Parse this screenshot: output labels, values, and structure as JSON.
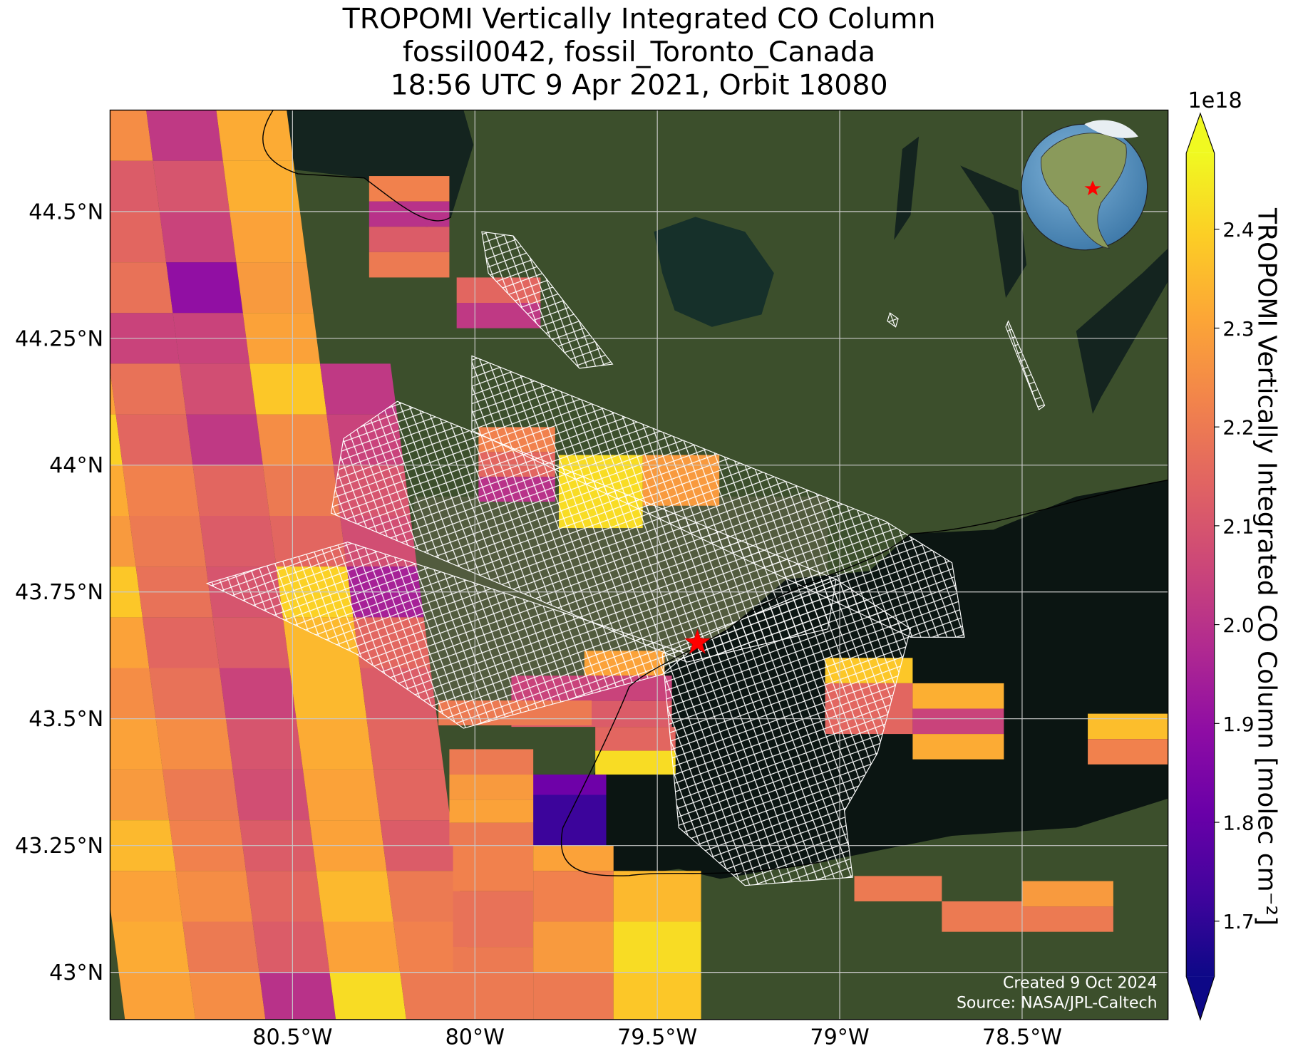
{
  "chart_data": {
    "type": "map",
    "title": [
      "TROPOMI Vertically Integrated CO Column",
      "fossil0042, fossil_Toronto_Canada",
      "18:56 UTC 9 Apr 2021, Orbit 18080"
    ],
    "xlim": [
      -81.0,
      -78.1
    ],
    "ylim": [
      42.907,
      44.7
    ],
    "xticks": [
      {
        "value": -80.5,
        "label": "80.5°W"
      },
      {
        "value": -80,
        "label": "80°W"
      },
      {
        "value": -79.5,
        "label": "79.5°W"
      },
      {
        "value": -79,
        "label": "79°W"
      },
      {
        "value": -78.5,
        "label": "78.5°W"
      }
    ],
    "yticks": [
      {
        "value": 43,
        "label": "43°N"
      },
      {
        "value": 43.25,
        "label": "43.25°N"
      },
      {
        "value": 43.5,
        "label": "43.5°N"
      },
      {
        "value": 43.75,
        "label": "43.75°N"
      },
      {
        "value": 44,
        "label": "44°N"
      },
      {
        "value": 44.25,
        "label": "44.25°N"
      },
      {
        "value": 44.5,
        "label": "44.5°N"
      }
    ],
    "grid": true,
    "colormap": "plasma",
    "clim": [
      1.644,
      2.477
    ],
    "colorbar_ticks": [
      1.7,
      1.8,
      1.9,
      {
        "value": 2,
        "label": "2.0"
      },
      2.1,
      2.2,
      2.3,
      2.4
    ],
    "colorbar_label": "TROPOMI Vertically Integrated CO Column [molec cm⁻²]",
    "colorbar_offset": "1e18",
    "site": {
      "lon": -79.39,
      "lat": 43.65
    },
    "swaths": [
      {
        "lat_edges": [
          44.7,
          44.6,
          44.5,
          44.4,
          44.3,
          44.2,
          44.1,
          44.0,
          43.9,
          43.8,
          43.7,
          43.6,
          43.5,
          43.4,
          43.3,
          43.2,
          43.1,
          43.0,
          42.9
        ],
        "lon_edges_north": [
          -81.287,
          -81.094,
          -80.901,
          -80.709,
          -80.516,
          -80.323
        ],
        "lon_edges_south": [
          -80.958,
          -80.765,
          -80.573,
          -80.38,
          -80.187,
          -79.994
        ],
        "values": [
          [
            null,
            2.25,
            2.02,
            2.32,
            null
          ],
          [
            null,
            2.12,
            2.1,
            2.33,
            null
          ],
          [
            2.15,
            2.15,
            2.05,
            2.3,
            null
          ],
          [
            2.2,
            2.18,
            1.9,
            2.28,
            null
          ],
          [
            2.25,
            2.05,
            2.05,
            2.3,
            null
          ],
          [
            2.3,
            2.18,
            2.08,
            2.38,
            2.02
          ],
          [
            2.4,
            2.15,
            2.02,
            2.25,
            2.05
          ],
          [
            2.32,
            2.22,
            2.15,
            2.2,
            2.1
          ],
          [
            2.28,
            2.2,
            2.12,
            2.15,
            2.08
          ],
          [
            2.38,
            2.18,
            2.1,
            2.4,
            1.95
          ],
          [
            2.3,
            2.15,
            2.12,
            2.35,
            2.15
          ],
          [
            2.25,
            2.18,
            2.05,
            2.35,
            2.12
          ],
          [
            2.3,
            2.25,
            2.1,
            2.32,
            2.15
          ],
          [
            2.28,
            2.2,
            2.08,
            2.3,
            2.15
          ],
          [
            2.35,
            2.22,
            2.12,
            2.3,
            2.12
          ],
          [
            2.3,
            2.25,
            2.15,
            2.35,
            2.2
          ],
          [
            2.32,
            2.2,
            2.12,
            2.3,
            2.22
          ],
          [
            2.3,
            2.25,
            2.0,
            2.42,
            2.2
          ]
        ]
      }
    ],
    "pixels": [
      {
        "lon": [
          -80.29,
          -80.07
        ],
        "lat": [
          44.52,
          44.57
        ],
        "value": 2.22
      },
      {
        "lon": [
          -80.29,
          -80.07
        ],
        "lat": [
          44.47,
          44.52
        ],
        "value": 2.0
      },
      {
        "lon": [
          -80.29,
          -80.07
        ],
        "lat": [
          44.42,
          44.47
        ],
        "value": 2.12
      },
      {
        "lon": [
          -80.29,
          -80.07
        ],
        "lat": [
          44.37,
          44.42
        ],
        "value": 2.2
      },
      {
        "lon": [
          -80.05,
          -79.82
        ],
        "lat": [
          44.32,
          44.37
        ],
        "value": 2.15
      },
      {
        "lon": [
          -80.05,
          -79.82
        ],
        "lat": [
          44.27,
          44.32
        ],
        "value": 2.02
      },
      {
        "lon": [
          -79.99,
          -79.78
        ],
        "lat": [
          44.026,
          44.075
        ],
        "value": 2.22
      },
      {
        "lon": [
          -79.99,
          -79.78
        ],
        "lat": [
          43.977,
          44.026
        ],
        "value": 2.15
      },
      {
        "lon": [
          -79.99,
          -79.78
        ],
        "lat": [
          43.928,
          43.977
        ],
        "value": 2.0
      },
      {
        "lon": [
          -79.77,
          -79.54
        ],
        "lat": [
          43.876,
          44.02
        ],
        "value": 2.42
      },
      {
        "lon": [
          -79.54,
          -79.33
        ],
        "lat": [
          43.92,
          44.02
        ],
        "value": 2.28
      },
      {
        "lon": [
          -79.7,
          -79.48
        ],
        "lat": [
          43.585,
          43.634
        ],
        "value": 2.3
      },
      {
        "lon": [
          -79.9,
          -79.46
        ],
        "lat": [
          43.535,
          43.585
        ],
        "value": 2.05
      },
      {
        "lon": [
          -79.9,
          -79.46
        ],
        "lat": [
          43.484,
          43.535
        ],
        "value": 2.12
      },
      {
        "lon": [
          -80.1,
          -79.68
        ],
        "lat": [
          43.487,
          43.536
        ],
        "value": 2.2
      },
      {
        "lon": [
          -79.67,
          -79.45
        ],
        "lat": [
          43.437,
          43.484
        ],
        "value": 2.15
      },
      {
        "lon": [
          -79.67,
          -79.45
        ],
        "lat": [
          43.39,
          43.437
        ],
        "value": 2.42
      },
      {
        "lon": [
          -79.86,
          -79.64
        ],
        "lat": [
          43.35,
          43.39
        ],
        "value": 1.82
      },
      {
        "lon": [
          -79.86,
          -79.64
        ],
        "lat": [
          43.245,
          43.35
        ],
        "value": 1.72
      },
      {
        "lon": [
          -80.07,
          -79.84
        ],
        "lat": [
          43.39,
          43.44
        ],
        "value": 2.2
      },
      {
        "lon": [
          -80.07,
          -79.84
        ],
        "lat": [
          43.34,
          43.39
        ],
        "value": 2.28
      },
      {
        "lon": [
          -80.07,
          -79.84
        ],
        "lat": [
          43.295,
          43.34
        ],
        "value": 2.3
      },
      {
        "lon": [
          -80.07,
          -79.84
        ],
        "lat": [
          43.25,
          43.295
        ],
        "value": 2.2
      },
      {
        "lon": [
          -80.06,
          -79.84
        ],
        "lat": [
          43.16,
          43.25
        ],
        "value": 2.22
      },
      {
        "lon": [
          -80.06,
          -79.84
        ],
        "lat": [
          43.05,
          43.16
        ],
        "value": 2.18
      },
      {
        "lon": [
          -80.06,
          -79.84
        ],
        "lat": [
          42.907,
          43.05
        ],
        "value": 2.2
      },
      {
        "lon": [
          -79.84,
          -79.62
        ],
        "lat": [
          43.2,
          43.25
        ],
        "value": 2.3
      },
      {
        "lon": [
          -79.84,
          -79.62
        ],
        "lat": [
          43.1,
          43.2
        ],
        "value": 2.22
      },
      {
        "lon": [
          -79.84,
          -79.62
        ],
        "lat": [
          43.0,
          43.1
        ],
        "value": 2.28
      },
      {
        "lon": [
          -79.84,
          -79.62
        ],
        "lat": [
          42.907,
          43.0
        ],
        "value": 2.2
      },
      {
        "lon": [
          -79.62,
          -79.38
        ],
        "lat": [
          43.1,
          43.2
        ],
        "value": 2.35
      },
      {
        "lon": [
          -79.62,
          -79.38
        ],
        "lat": [
          43.0,
          43.1
        ],
        "value": 2.42
      },
      {
        "lon": [
          -79.62,
          -79.38
        ],
        "lat": [
          42.907,
          43.0
        ],
        "value": 2.38
      },
      {
        "lon": [
          -79.04,
          -78.8
        ],
        "lat": [
          43.57,
          43.62
        ],
        "value": 2.38
      },
      {
        "lon": [
          -79.04,
          -78.8
        ],
        "lat": [
          43.47,
          43.57
        ],
        "value": 2.15
      },
      {
        "lon": [
          -78.8,
          -78.55
        ],
        "lat": [
          43.52,
          43.57
        ],
        "value": 2.33
      },
      {
        "lon": [
          -78.8,
          -78.55
        ],
        "lat": [
          43.47,
          43.52
        ],
        "value": 2.05
      },
      {
        "lon": [
          -78.8,
          -78.55
        ],
        "lat": [
          43.42,
          43.47
        ],
        "value": 2.32
      },
      {
        "lon": [
          -78.32,
          -78.1
        ],
        "lat": [
          43.46,
          43.51
        ],
        "value": 2.36
      },
      {
        "lon": [
          -78.32,
          -78.1
        ],
        "lat": [
          43.41,
          43.46
        ],
        "value": 2.22
      },
      {
        "lon": [
          -78.96,
          -78.72
        ],
        "lat": [
          43.14,
          43.19
        ],
        "value": 2.2
      },
      {
        "lon": [
          -78.72,
          -78.5
        ],
        "lat": [
          43.08,
          43.14
        ],
        "value": 2.2
      },
      {
        "lon": [
          -78.5,
          -78.25
        ],
        "lat": [
          43.13,
          43.18
        ],
        "value": 2.28
      },
      {
        "lon": [
          -78.5,
          -78.25
        ],
        "lat": [
          43.08,
          43.13
        ],
        "value": 2.2
      }
    ],
    "credits": [
      "Created 9 Oct 2024",
      "Source: NASA/JPL-Caltech"
    ]
  }
}
